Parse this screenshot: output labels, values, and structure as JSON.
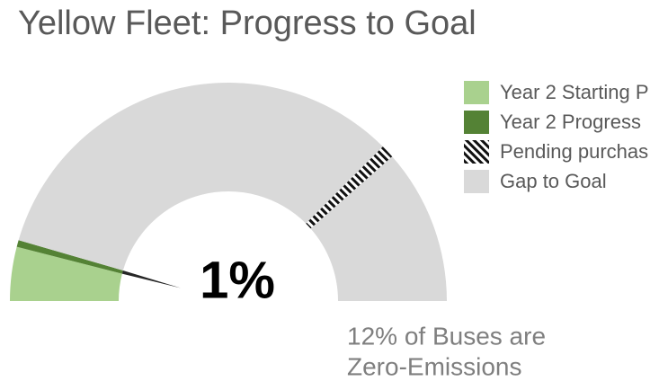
{
  "chart_data": {
    "type": "gauge",
    "title": "Yellow Fleet: Progress to Goal",
    "center_label": "1%",
    "note": [
      "12% of Buses are",
      "Zero-Emissions"
    ],
    "series": [
      {
        "name": "Year 2 Starting P",
        "color": "#a9d18e",
        "values": [
          8,
          null,
          null,
          null,
          null
        ]
      },
      {
        "name": "Year 2 Progress",
        "color": "#548235",
        "values": [
          null,
          1,
          null,
          null,
          null
        ]
      },
      {
        "name": "Pending purchas",
        "color": "hatch",
        "values": [
          null,
          null,
          null,
          2,
          null
        ]
      },
      {
        "name": "Gap to Goal",
        "color": "#d9d9d9",
        "values": [
          null,
          null,
          66,
          null,
          23
        ]
      }
    ]
  }
}
